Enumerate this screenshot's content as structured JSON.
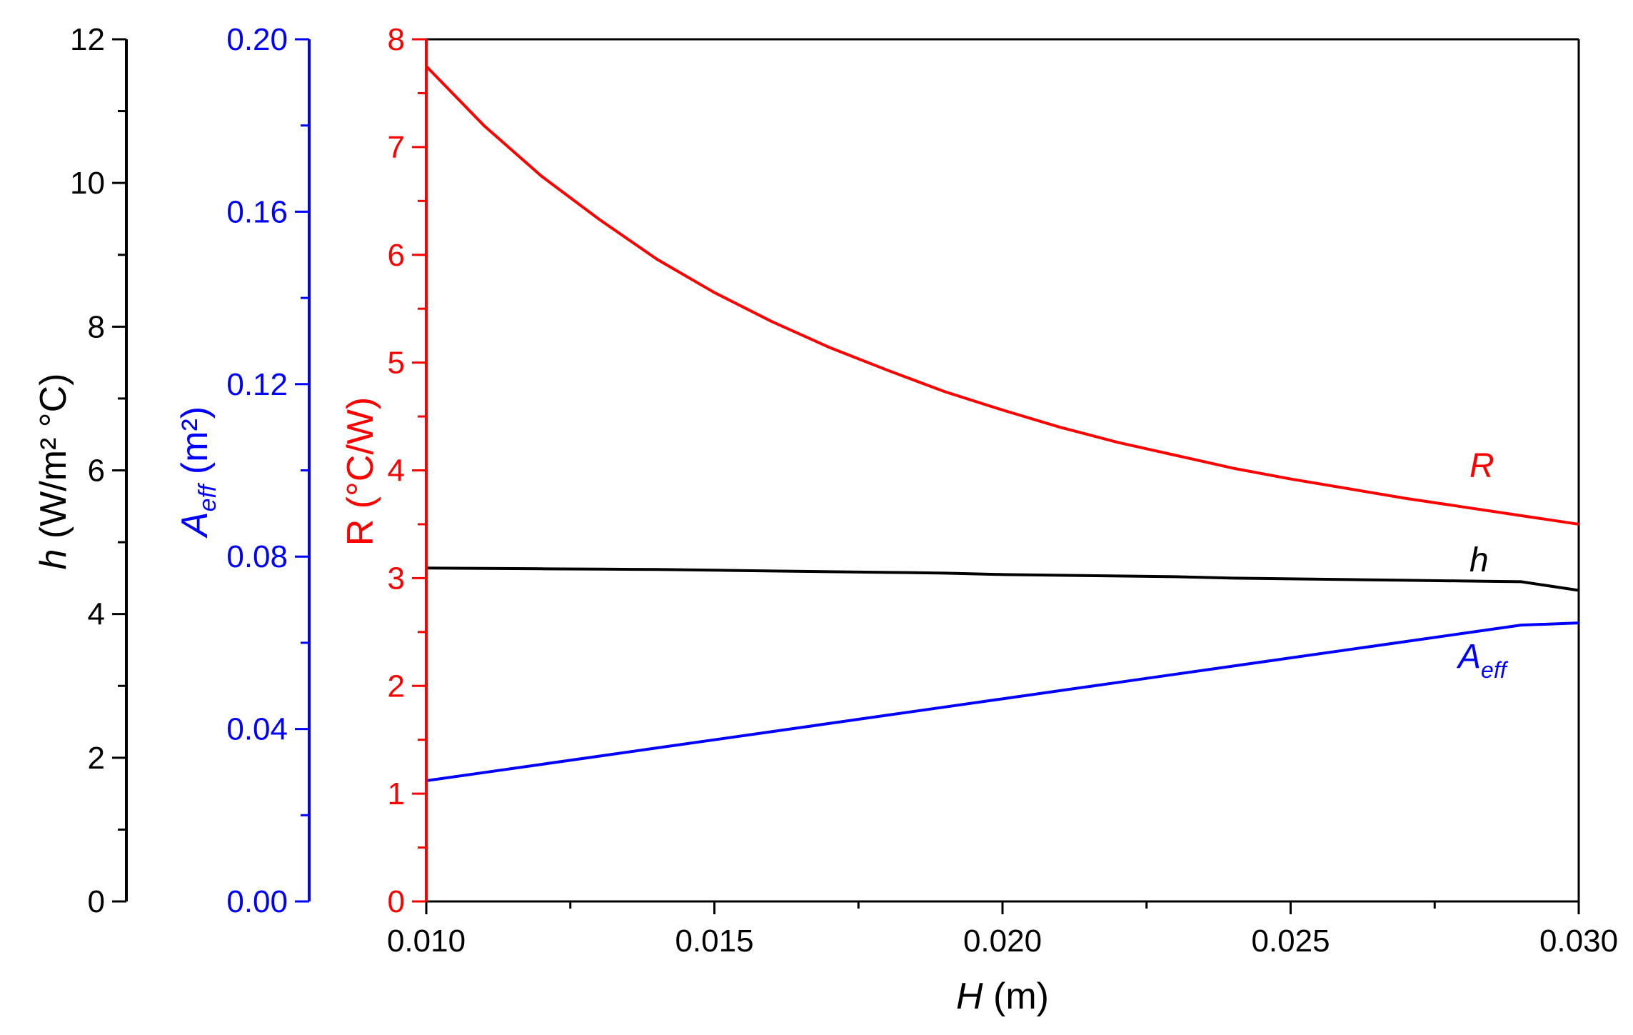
{
  "chart_data": {
    "type": "line",
    "x": [
      0.01,
      0.011,
      0.012,
      0.013,
      0.014,
      0.015,
      0.016,
      0.017,
      0.018,
      0.019,
      0.02,
      0.021,
      0.022,
      0.023,
      0.024,
      0.025,
      0.026,
      0.027,
      0.028,
      0.029,
      0.03
    ],
    "xlim": [
      0.01,
      0.03
    ],
    "xticks": [
      "0.010",
      "0.015",
      "0.020",
      "0.025",
      "0.030"
    ],
    "xlabel": {
      "var": "H",
      "unit": " (m)"
    },
    "axes": {
      "R": {
        "color": "#ff0000",
        "lim": [
          0,
          8
        ],
        "ticks": [
          "0",
          "1",
          "2",
          "3",
          "4",
          "5",
          "6",
          "7",
          "8"
        ],
        "label_var": "R",
        "label_unit": " (°C/W)"
      },
      "Aeff": {
        "color": "#0000ff",
        "lim": [
          0,
          0.2
        ],
        "ticks": [
          "0.00",
          "0.04",
          "0.08",
          "0.12",
          "0.16",
          "0.20"
        ],
        "label_var": "A",
        "label_sub": "eff",
        "label_unit": " (m²)"
      },
      "h": {
        "color": "#000000",
        "lim": [
          0,
          12
        ],
        "ticks": [
          "0",
          "2",
          "4",
          "6",
          "8",
          "10",
          "12"
        ],
        "label_var": "h",
        "label_unit": " (W/m² °C)"
      }
    },
    "series": [
      {
        "name": "R",
        "axis": "R",
        "color": "#ff0000",
        "values": [
          7.75,
          7.2,
          6.73,
          6.33,
          5.96,
          5.65,
          5.38,
          5.14,
          4.93,
          4.73,
          4.56,
          4.4,
          4.26,
          4.14,
          4.02,
          3.92,
          3.83,
          3.74,
          3.66,
          3.58,
          3.5
        ]
      },
      {
        "name": "h",
        "axis": "h",
        "color": "#000000",
        "values": [
          4.64,
          4.635,
          4.63,
          4.625,
          4.62,
          4.61,
          4.6,
          4.59,
          4.58,
          4.57,
          4.55,
          4.54,
          4.53,
          4.52,
          4.5,
          4.49,
          4.48,
          4.47,
          4.46,
          4.45,
          4.33
        ]
      },
      {
        "name": "A",
        "sub": "eff",
        "axis": "Aeff",
        "color": "#0000ff",
        "values": [
          0.028,
          0.0299,
          0.0318,
          0.0337,
          0.0356,
          0.0375,
          0.0394,
          0.0413,
          0.0432,
          0.0451,
          0.047,
          0.0489,
          0.0508,
          0.0527,
          0.0546,
          0.0565,
          0.0584,
          0.0603,
          0.0622,
          0.0641,
          0.0646
        ]
      }
    ],
    "grid": false
  }
}
